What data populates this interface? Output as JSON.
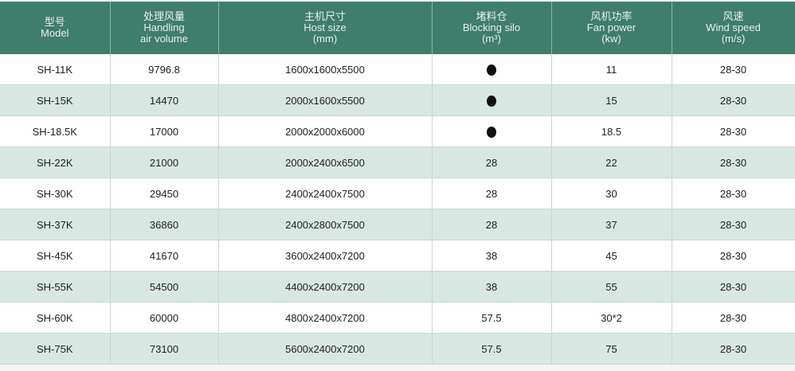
{
  "headers": [
    {
      "zh": "型号",
      "en": "Model",
      "unit": ""
    },
    {
      "zh": "处理风量",
      "en": "Handling",
      "unit": "air volume"
    },
    {
      "zh": "主机尺寸",
      "en": "Host size",
      "unit": "(mm)"
    },
    {
      "zh": "堵料仓",
      "en": "Blocking silo",
      "unit": "(m³)"
    },
    {
      "zh": "风机功率",
      "en": "Fan power",
      "unit": "(kw)"
    },
    {
      "zh": "风速",
      "en": "Wind speed",
      "unit": "(m/s)"
    }
  ],
  "rows": [
    [
      "SH-11K",
      "9796.8",
      "1600x1600x5500",
      "●",
      "11",
      "28-30"
    ],
    [
      "SH-15K",
      "14470",
      "2000x1600x5500",
      "●",
      "15",
      "28-30"
    ],
    [
      "SH-18.5K",
      "17000",
      "2000x2000x6000",
      "●",
      "18.5",
      "28-30"
    ],
    [
      "SH-22K",
      "21000",
      "2000x2400x6500",
      "28",
      "22",
      "28-30"
    ],
    [
      "SH-30K",
      "29450",
      "2400x2400x7500",
      "28",
      "30",
      "28-30"
    ],
    [
      "SH-37K",
      "36860",
      "2400x2800x7500",
      "28",
      "37",
      "28-30"
    ],
    [
      "SH-45K",
      "41670",
      "3600x2400x7200",
      "38",
      "45",
      "28-30"
    ],
    [
      "SH-55K",
      "54500",
      "4400x2400x7200",
      "38",
      "55",
      "28-30"
    ],
    [
      "SH-60K",
      "60000",
      "4800x2400x7200",
      "57.5",
      "30*2",
      "28-30"
    ],
    [
      "SH-75K",
      "73100",
      "5600x2400x7200",
      "57.5",
      "75",
      "28-30"
    ]
  ]
}
